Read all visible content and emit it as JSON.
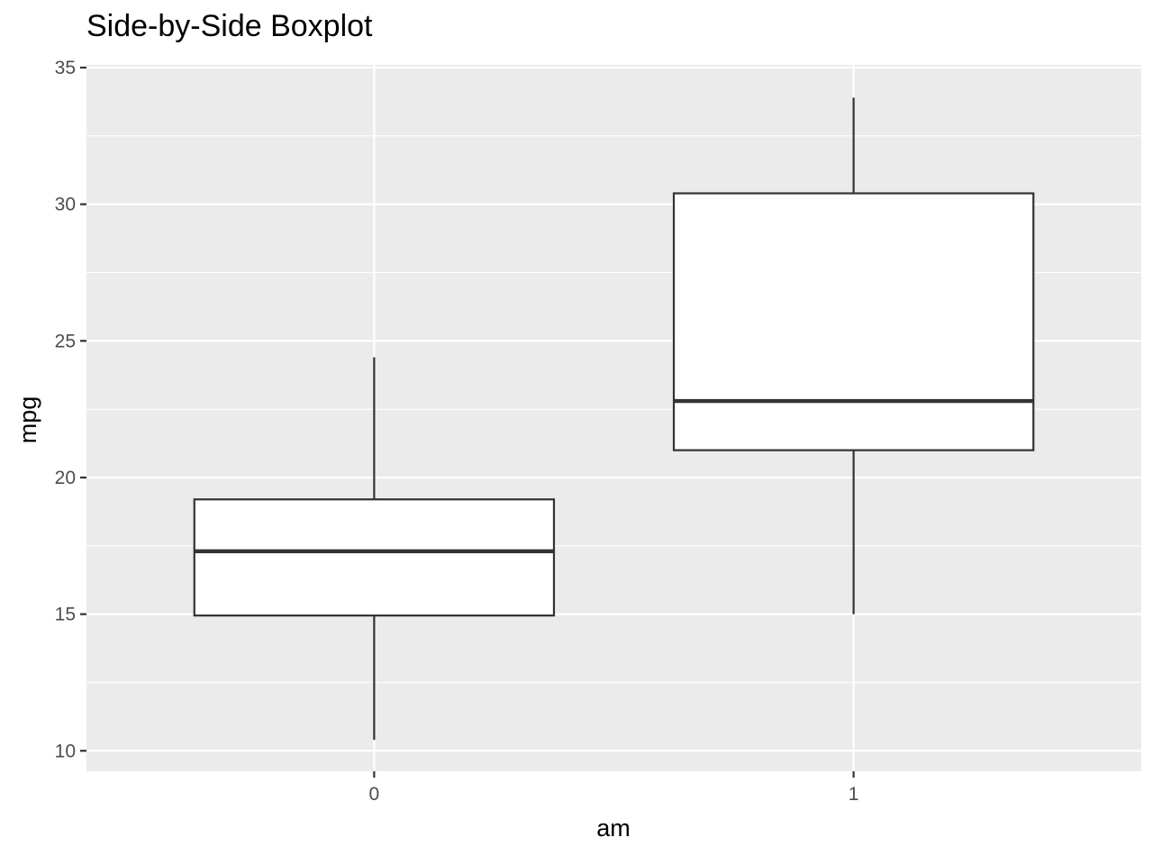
{
  "chart_data": {
    "type": "boxplot",
    "title": "Side-by-Side Boxplot",
    "xlabel": "am",
    "ylabel": "mpg",
    "ylim": [
      9.25,
      35.1
    ],
    "yticks": [
      10,
      15,
      20,
      25,
      30,
      35
    ],
    "grid": true,
    "categories": [
      "0",
      "1"
    ],
    "boxes": [
      {
        "category": "0",
        "min": 10.4,
        "q1": 14.95,
        "median": 17.3,
        "q3": 19.2,
        "max": 24.4
      },
      {
        "category": "1",
        "min": 15.0,
        "q1": 21.0,
        "median": 22.8,
        "q3": 30.4,
        "max": 33.9
      }
    ]
  }
}
